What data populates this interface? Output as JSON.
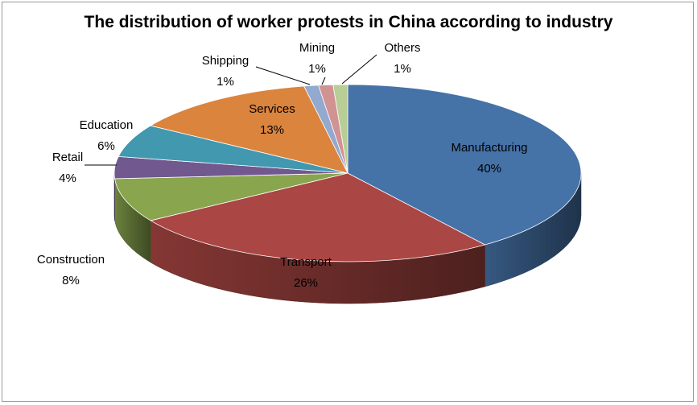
{
  "chart_data": {
    "type": "pie",
    "title": "The distribution of worker protests in China according to industry",
    "slices": [
      {
        "label": "Manufacturing",
        "value": 40,
        "value_label": "40%",
        "color": "#4572a7"
      },
      {
        "label": "Transport",
        "value": 26,
        "value_label": "26%",
        "color": "#aa4643"
      },
      {
        "label": "Construction",
        "value": 8,
        "value_label": "8%",
        "color": "#89a54e"
      },
      {
        "label": "Retail",
        "value": 4,
        "value_label": "4%",
        "color": "#71588f"
      },
      {
        "label": "Education",
        "value": 6,
        "value_label": "6%",
        "color": "#4198af"
      },
      {
        "label": "Services",
        "value": 13,
        "value_label": "13%",
        "color": "#db843d"
      },
      {
        "label": "Shipping",
        "value": 1,
        "value_label": "1%",
        "color": "#93a9cf"
      },
      {
        "label": "Mining",
        "value": 1,
        "value_label": "1%",
        "color": "#d19392"
      },
      {
        "label": "Others",
        "value": 1,
        "value_label": "1%",
        "color": "#b9cd96"
      }
    ],
    "legend": "none",
    "style": "3d-exploded-free"
  }
}
